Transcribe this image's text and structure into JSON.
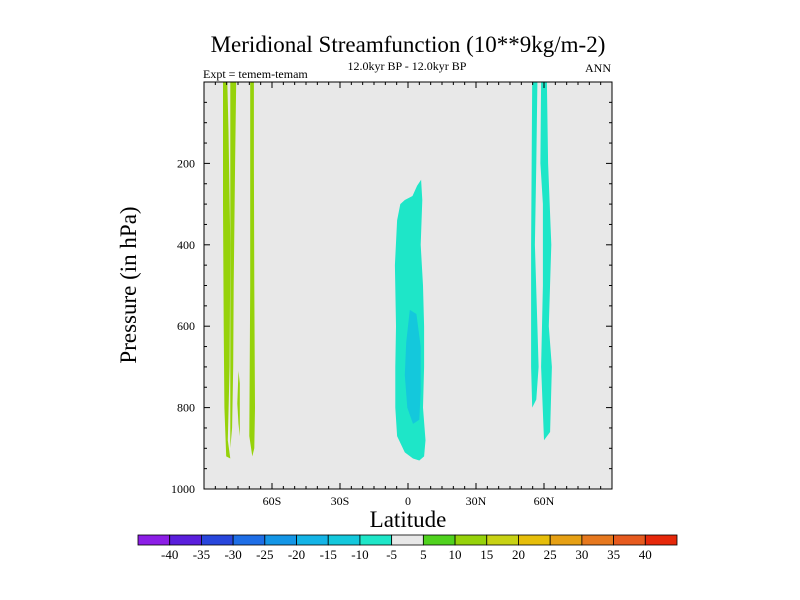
{
  "chart_data": {
    "type": "contour",
    "title": "Meridional Streamfunction (10**9kg/m-2)",
    "left_subtitle": "Expt = temem-temam",
    "center_subtitle": "12.0kyr BP - 12.0kyr BP",
    "right_subtitle": "ANN",
    "xlabel": "Latitude",
    "ylabel": "Pressure (in hPa)",
    "xlim": [
      -90,
      90
    ],
    "ylim": [
      1000,
      0
    ],
    "x_ticks": [
      {
        "value": -60,
        "label": "60S"
      },
      {
        "value": -30,
        "label": "30S"
      },
      {
        "value": 0,
        "label": "0"
      },
      {
        "value": 30,
        "label": "30N"
      },
      {
        "value": 60,
        "label": "60N"
      }
    ],
    "y_ticks": [
      {
        "value": 200,
        "label": "200"
      },
      {
        "value": 400,
        "label": "400"
      },
      {
        "value": 600,
        "label": "600"
      },
      {
        "value": 800,
        "label": "800"
      },
      {
        "value": 1000,
        "label": "1000"
      }
    ],
    "colorbar": {
      "boundaries": [
        -45,
        -40,
        -35,
        -30,
        -25,
        -20,
        -15,
        -10,
        -5,
        5,
        10,
        15,
        20,
        25,
        30,
        35,
        40,
        45
      ],
      "labels": [
        "-40",
        "-35",
        "-30",
        "-25",
        "-20",
        "-15",
        "-10",
        "-5",
        "5",
        "10",
        "15",
        "20",
        "25",
        "30",
        "35",
        "40"
      ],
      "colors": [
        "#8c1ee6",
        "#5a1edc",
        "#2846dc",
        "#1e6ee6",
        "#1496e6",
        "#14b4e6",
        "#14c8dc",
        "#1ee6c8",
        "#e8e8e8",
        "#50d21e",
        "#96d20a",
        "#c8d214",
        "#e6be0a",
        "#e6a014",
        "#e6781e",
        "#e65a1e",
        "#e6280a"
      ]
    },
    "background_color": "#e8e8e8",
    "regions": [
      {
        "name": "band-80s",
        "color": "#96d20a",
        "points": [
          [
            -81.6,
            0
          ],
          [
            -79.7,
            0
          ],
          [
            -79.2,
            120
          ],
          [
            -78.4,
            400
          ],
          [
            -78.7,
            700
          ],
          [
            -79.5,
            880
          ],
          [
            -78.4,
            925
          ],
          [
            -80.2,
            920
          ],
          [
            -81.0,
            800
          ],
          [
            -81.3,
            600
          ],
          [
            -81.6,
            300
          ]
        ]
      },
      {
        "name": "band-76s",
        "color": "#96d20a",
        "points": [
          [
            -78.4,
            0
          ],
          [
            -75.8,
            0
          ],
          [
            -76.3,
            200
          ],
          [
            -76.9,
            500
          ],
          [
            -77.1,
            700
          ],
          [
            -77.6,
            850
          ],
          [
            -78.4,
            900
          ],
          [
            -78.4,
            300
          ]
        ]
      },
      {
        "name": "sliver-75s",
        "color": "#96d20a",
        "points": [
          [
            -74.8,
            710
          ],
          [
            -74.2,
            740
          ],
          [
            -74.2,
            870
          ],
          [
            -74.8,
            840
          ],
          [
            -75.3,
            790
          ]
        ]
      },
      {
        "name": "band-69s",
        "color": "#96d20a",
        "points": [
          [
            -69.6,
            0
          ],
          [
            -68.0,
            0
          ],
          [
            -68.0,
            200
          ],
          [
            -67.8,
            500
          ],
          [
            -67.5,
            800
          ],
          [
            -67.8,
            900
          ],
          [
            -68.7,
            920
          ],
          [
            -70.0,
            870
          ],
          [
            -69.6,
            500
          ]
        ]
      },
      {
        "name": "equatorial-cell",
        "color": "#1ee6c8",
        "points": [
          [
            -1.4,
            290
          ],
          [
            2.0,
            280
          ],
          [
            4.0,
            255
          ],
          [
            5.8,
            240
          ],
          [
            6.3,
            290
          ],
          [
            5.6,
            400
          ],
          [
            6.6,
            500
          ],
          [
            7.1,
            600
          ],
          [
            7.1,
            700
          ],
          [
            6.6,
            800
          ],
          [
            7.7,
            880
          ],
          [
            7.1,
            920
          ],
          [
            5.0,
            930
          ],
          [
            2.2,
            925
          ],
          [
            -1.4,
            910
          ],
          [
            -4.8,
            870
          ],
          [
            -5.6,
            800
          ],
          [
            -5.6,
            700
          ],
          [
            -5.3,
            600
          ],
          [
            -5.8,
            450
          ],
          [
            -4.8,
            340
          ],
          [
            -3.4,
            300
          ]
        ]
      },
      {
        "name": "equatorial-core",
        "color": "#14c8dc",
        "points": [
          [
            0.8,
            560
          ],
          [
            3.7,
            570
          ],
          [
            5.6,
            650
          ],
          [
            5.6,
            760
          ],
          [
            5.0,
            830
          ],
          [
            2.2,
            840
          ],
          [
            -0.3,
            800
          ],
          [
            -1.4,
            720
          ],
          [
            -0.8,
            640
          ]
        ]
      },
      {
        "name": "band-56n",
        "color": "#1ee6c8",
        "points": [
          [
            54.8,
            0
          ],
          [
            57.1,
            0
          ],
          [
            56.6,
            200
          ],
          [
            56.0,
            400
          ],
          [
            57.1,
            600
          ],
          [
            57.6,
            700
          ],
          [
            56.6,
            780
          ],
          [
            54.8,
            800
          ],
          [
            54.3,
            700
          ],
          [
            54.3,
            400
          ]
        ]
      },
      {
        "name": "band-61n",
        "color": "#1ee6c8",
        "points": [
          [
            58.7,
            0
          ],
          [
            61.3,
            0
          ],
          [
            61.8,
            200
          ],
          [
            63.2,
            400
          ],
          [
            62.1,
            600
          ],
          [
            63.5,
            700
          ],
          [
            62.7,
            860
          ],
          [
            60.0,
            880
          ],
          [
            58.7,
            700
          ],
          [
            59.5,
            500
          ],
          [
            59.5,
            300
          ],
          [
            58.4,
            200
          ]
        ]
      }
    ]
  }
}
